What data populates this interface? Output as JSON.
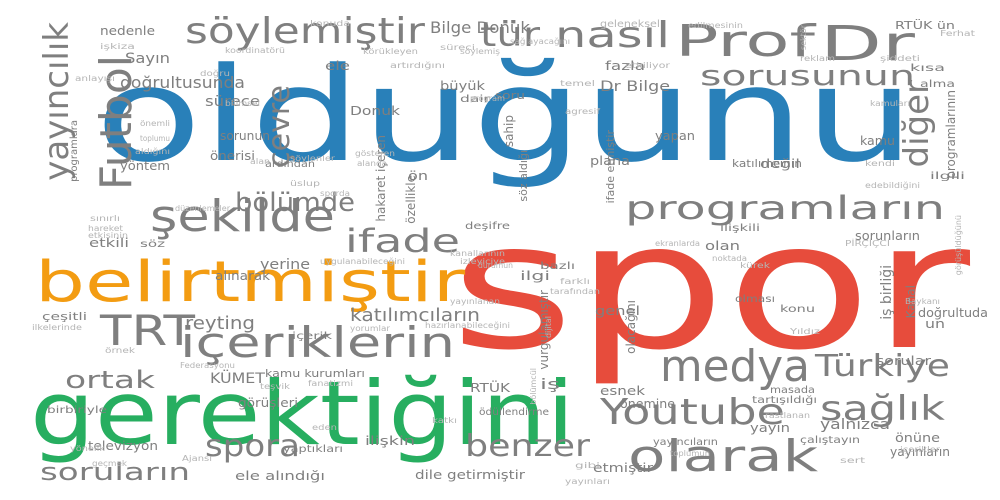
{
  "colors": {
    "red": "#e74c3c",
    "blue": "#2980b9",
    "green": "#27ae60",
    "orange": "#f39c12",
    "gray": "#7f7f7f",
    "light_gray": "#b5b5b5"
  },
  "words": [
    {
      "id": "spor",
      "text": "spor",
      "color": "red"
    },
    {
      "id": "oldugunu",
      "text": "olduğunu",
      "color": "blue"
    },
    {
      "id": "gerektigini",
      "text": "gerektiğini",
      "color": "green"
    },
    {
      "id": "belirtmistir",
      "text": "belirtmiştir",
      "color": "orange"
    },
    {
      "id": "prof",
      "text": "Prof",
      "color": "gray"
    },
    {
      "id": "dr",
      "text": "Dr",
      "color": "gray"
    },
    {
      "id": "soylemistir",
      "text": "söylemiştir",
      "color": "gray"
    },
    {
      "id": "nasil",
      "text": "nasıl",
      "color": "gray"
    },
    {
      "id": "tur",
      "text": "tür",
      "color": "gray"
    },
    {
      "id": "futbol",
      "text": "Futbol",
      "color": "gray"
    },
    {
      "id": "yayincilik",
      "text": "yayıncılık",
      "color": "gray"
    },
    {
      "id": "sekilde",
      "text": "şekilde",
      "color": "gray"
    },
    {
      "id": "cevre",
      "text": "çevre",
      "color": "gray"
    },
    {
      "id": "bolumde",
      "text": "bölümde",
      "color": "gray"
    },
    {
      "id": "ifade",
      "text": "ifade",
      "color": "gray"
    },
    {
      "id": "programlarin",
      "text": "programların",
      "color": "gray"
    },
    {
      "id": "sorusunun",
      "text": "sorusunun",
      "color": "gray"
    },
    {
      "id": "diger",
      "text": "diğer",
      "color": "gray"
    },
    {
      "id": "trt",
      "text": "TRT",
      "color": "gray"
    },
    {
      "id": "iceriklerin",
      "text": "içeriklerin",
      "color": "gray"
    },
    {
      "id": "medya",
      "text": "medya",
      "color": "gray"
    },
    {
      "id": "turkiye",
      "text": "Türkiye",
      "color": "gray"
    },
    {
      "id": "youtube",
      "text": "Youtube",
      "color": "gray"
    },
    {
      "id": "saglik",
      "text": "sağlık",
      "color": "gray"
    },
    {
      "id": "olarak",
      "text": "olarak",
      "color": "gray"
    },
    {
      "id": "benzer",
      "text": "benzer",
      "color": "gray"
    },
    {
      "id": "spora",
      "text": "spora",
      "color": "gray"
    },
    {
      "id": "sorularin",
      "text": "soruların",
      "color": "gray"
    },
    {
      "id": "ortak",
      "text": "ortak",
      "color": "gray"
    },
    {
      "id": "reyting",
      "text": "reyting",
      "color": "gray"
    },
    {
      "id": "katilimcilarin",
      "text": "katılımcıların",
      "color": "gray"
    },
    {
      "id": "bilge-donuk",
      "text": "Bilge Donuk",
      "color": "gray"
    },
    {
      "id": "dr-bilge",
      "text": "Dr Bilge",
      "color": "gray"
    },
    {
      "id": "dogrultusunda",
      "text": "doğrultusunda",
      "color": "gray"
    },
    {
      "id": "sayin",
      "text": "Sayın",
      "color": "gray"
    },
    {
      "id": "nedenle",
      "text": "nedenle",
      "color": "gray"
    },
    {
      "id": "donuk",
      "text": "Donuk",
      "color": "gray"
    },
    {
      "id": "buyuk",
      "text": "büyük",
      "color": "gray"
    },
    {
      "id": "fazla",
      "text": "fazla",
      "color": "gray"
    },
    {
      "id": "surece",
      "text": "sürece",
      "color": "gray"
    },
    {
      "id": "kumet",
      "text": "KÜMET",
      "color": "gray"
    },
    {
      "id": "rtuk",
      "text": "RTÜK",
      "color": "gray"
    },
    {
      "id": "rtuk-un",
      "text": "RTÜK ün",
      "color": "gray"
    },
    {
      "id": "yayin",
      "text": "yayın",
      "color": "gray"
    },
    {
      "id": "yalnizca",
      "text": "yalnızca",
      "color": "gray"
    },
    {
      "id": "sorular",
      "text": "sorular",
      "color": "gray"
    },
    {
      "id": "kanal",
      "text": "Kanal",
      "color": "gray"
    },
    {
      "id": "is-birligi",
      "text": "iş birliği",
      "color": "gray"
    },
    {
      "id": "vurgulamistir",
      "text": "vurgulamıştır",
      "color": "gray"
    },
    {
      "id": "olacagini",
      "text": "olacağını",
      "color": "gray"
    },
    {
      "id": "genel",
      "text": "genel",
      "color": "gray"
    },
    {
      "id": "ilgi",
      "text": "ilgi",
      "color": "gray"
    },
    {
      "id": "ilgili",
      "text": "ilgili",
      "color": "gray"
    },
    {
      "id": "yerine",
      "text": "yerine",
      "color": "gray"
    },
    {
      "id": "yontem",
      "text": "yöntem",
      "color": "gray"
    },
    {
      "id": "programlara",
      "text": "programlara",
      "color": "gray"
    },
    {
      "id": "ozellikle",
      "text": "özellikle",
      "color": "gray"
    },
    {
      "id": "sahip",
      "text": "sahip",
      "color": "gray"
    },
    {
      "id": "soz-aldigi",
      "text": "söz aldığı",
      "color": "gray"
    },
    {
      "id": "soru",
      "text": "soru",
      "color": "gray"
    },
    {
      "id": "kamu",
      "text": "kamu",
      "color": "gray"
    },
    {
      "id": "kamu-kurumlari",
      "text": "kamu kurumları",
      "color": "gray"
    },
    {
      "id": "ifade-etmistir",
      "text": "ifade etmiştir",
      "color": "gray"
    },
    {
      "id": "gorusleri",
      "text": "görüşleri",
      "color": "gray"
    },
    {
      "id": "iliskin",
      "text": "ilişkin",
      "color": "gray"
    },
    {
      "id": "etmistir",
      "text": "etmiştir",
      "color": "gray"
    },
    {
      "id": "esnek",
      "text": "esnek",
      "color": "gray"
    },
    {
      "id": "is",
      "text": "iş",
      "color": "gray"
    },
    {
      "id": "dogrultuda",
      "text": "doğrultuda",
      "color": "gray"
    },
    {
      "id": "un",
      "text": "un",
      "color": "gray"
    },
    {
      "id": "televizyon",
      "text": "televizyon",
      "color": "gray"
    },
    {
      "id": "yaptiklari",
      "text": "yaptıkları",
      "color": "gray"
    },
    {
      "id": "ele-alindigi",
      "text": "ele alındığı",
      "color": "gray"
    },
    {
      "id": "dile-getirmistir",
      "text": "dile getirmiştir",
      "color": "gray"
    },
    {
      "id": "onemine",
      "text": "önemine",
      "color": "gray"
    },
    {
      "id": "yayincilarin",
      "text": "yayıncıların",
      "color": "gray"
    },
    {
      "id": "yayinlarin",
      "text": "yayınların",
      "color": "gray"
    },
    {
      "id": "onune",
      "text": "önüne",
      "color": "gray"
    },
    {
      "id": "calistayin",
      "text": "çalıştayın",
      "color": "gray"
    },
    {
      "id": "sorunlarin",
      "text": "sorunların",
      "color": "gray"
    },
    {
      "id": "olan",
      "text": "olan",
      "color": "gray"
    },
    {
      "id": "katilimcinin",
      "text": "katılımcının",
      "color": "gray"
    },
    {
      "id": "iliskili",
      "text": "ilişkili",
      "color": "gray"
    },
    {
      "id": "etkili",
      "text": "etkili",
      "color": "gray"
    },
    {
      "id": "cesitli",
      "text": "çeşitli",
      "color": "gray"
    },
    {
      "id": "icerik",
      "text": "içerik",
      "color": "gray"
    },
    {
      "id": "yapan",
      "text": "yapan",
      "color": "gray"
    },
    {
      "id": "degil",
      "text": "değil",
      "color": "gray"
    },
    {
      "id": "plana",
      "text": "plana",
      "color": "gray"
    },
    {
      "id": "sorunun",
      "text": "sorunun",
      "color": "gray"
    },
    {
      "id": "onerisi",
      "text": "önerisi",
      "color": "gray"
    },
    {
      "id": "ardindan",
      "text": "ardından",
      "color": "gray"
    },
    {
      "id": "alinarak",
      "text": "alınarak",
      "color": "gray"
    },
    {
      "id": "soz",
      "text": "söz",
      "color": "gray"
    },
    {
      "id": "desifre",
      "text": "deşifre",
      "color": "gray"
    },
    {
      "id": "bazli",
      "text": "bazlı",
      "color": "gray"
    },
    {
      "id": "olmasi",
      "text": "olması",
      "color": "gray"
    },
    {
      "id": "konu",
      "text": "konu",
      "color": "gray"
    },
    {
      "id": "birbiriyle",
      "text": "birbiriyle",
      "color": "gray"
    },
    {
      "id": "masada",
      "text": "masada",
      "color": "gray"
    },
    {
      "id": "tartisildigi",
      "text": "tartışıldığı",
      "color": "gray"
    },
    {
      "id": "odullendirme",
      "text": "ödüllendirme",
      "color": "gray"
    },
    {
      "id": "hakaret-iceren",
      "text": "hakaret içeren",
      "color": "gray"
    },
    {
      "id": "programlarinin",
      "text": "programlarının",
      "color": "gray"
    },
    {
      "id": "ele",
      "text": "ele",
      "color": "gray"
    },
    {
      "id": "dair",
      "text": "dair",
      "color": "gray"
    },
    {
      "id": "on",
      "text": "ön",
      "color": "gray"
    },
    {
      "id": "kisa",
      "text": "kısa",
      "color": "gray"
    },
    {
      "id": "alma",
      "text": "alma",
      "color": "gray"
    },
    {
      "id": "geleneksel",
      "text": "geleneksel",
      "color": "light_gray"
    },
    {
      "id": "temel",
      "text": "temel",
      "color": "light_gray"
    },
    {
      "id": "sektor",
      "text": "sektör",
      "color": "light_gray"
    },
    {
      "id": "konuda",
      "text": "konuda",
      "color": "light_gray"
    },
    {
      "id": "edilmesinin",
      "text": "edilmesinin",
      "color": "light_gray"
    },
    {
      "id": "reklam",
      "text": "reklam",
      "color": "light_gray"
    },
    {
      "id": "siddeti",
      "text": "şiddeti",
      "color": "light_gray"
    },
    {
      "id": "ferhat",
      "text": "Ferhat",
      "color": "light_gray"
    },
    {
      "id": "sagliyacagini",
      "text": "sağlayacağını",
      "color": "light_gray"
    },
    {
      "id": "korukleyen",
      "text": "körükleyen",
      "color": "light_gray"
    },
    {
      "id": "artirdigini",
      "text": "artırdığını",
      "color": "light_gray"
    },
    {
      "id": "surec",
      "text": "süreci",
      "color": "light_gray"
    },
    {
      "id": "soylemis",
      "text": "söylemiş",
      "color": "light_gray"
    },
    {
      "id": "etkiliyor",
      "text": "etkiliyor",
      "color": "light_gray"
    },
    {
      "id": "iskiza",
      "text": "işkiza",
      "color": "light_gray"
    },
    {
      "id": "koordinatoru",
      "text": "koordinatörü",
      "color": "light_gray"
    },
    {
      "id": "dogru",
      "text": "doğru",
      "color": "light_gray"
    },
    {
      "id": "anlayisi",
      "text": "anlayışı",
      "color": "light_gray"
    },
    {
      "id": "program",
      "text": "program",
      "color": "light_gray"
    },
    {
      "id": "agresif",
      "text": "agresif",
      "color": "light_gray"
    },
    {
      "id": "onemli",
      "text": "önemli",
      "color": "light_gray"
    },
    {
      "id": "toplumu",
      "text": "toplumu",
      "color": "light_gray"
    },
    {
      "id": "aldigini",
      "text": "aldığını",
      "color": "light_gray"
    },
    {
      "id": "bilimsel",
      "text": "bilimsel",
      "color": "light_gray"
    },
    {
      "id": "alan",
      "text": "alan",
      "color": "light_gray"
    },
    {
      "id": "kamulari",
      "text": "kamuları",
      "color": "light_gray"
    },
    {
      "id": "kendi",
      "text": "kendi",
      "color": "light_gray"
    },
    {
      "id": "edebildigini",
      "text": "edebildiğini",
      "color": "light_gray"
    },
    {
      "id": "gosteren",
      "text": "gösteren",
      "color": "light_gray"
    },
    {
      "id": "alanda",
      "text": "alanda",
      "color": "light_gray"
    },
    {
      "id": "soylenler",
      "text": "söylenler",
      "color": "light_gray"
    },
    {
      "id": "uslup",
      "text": "üslup",
      "color": "light_gray"
    },
    {
      "id": "sporda",
      "text": "sporda",
      "color": "light_gray"
    },
    {
      "id": "duzenlemeler",
      "text": "düzenlemeler",
      "color": "light_gray"
    },
    {
      "id": "sinirli",
      "text": "sınırlı",
      "color": "light_gray"
    },
    {
      "id": "hareket",
      "text": "hareket",
      "color": "light_gray"
    },
    {
      "id": "etkisinin",
      "text": "etkisinin",
      "color": "light_gray"
    },
    {
      "id": "ekranlarda",
      "text": "ekranlarda",
      "color": "light_gray"
    },
    {
      "id": "kanallarinin",
      "text": "kanallarının",
      "color": "light_gray"
    },
    {
      "id": "noktada",
      "text": "noktada",
      "color": "light_gray"
    },
    {
      "id": "pircikci",
      "text": "PİRÇİÇCİ",
      "color": "light_gray"
    },
    {
      "id": "uygulanabilecegini",
      "text": "uygulanabileceğini",
      "color": "light_gray"
    },
    {
      "id": "izleyiciye",
      "text": "izleyiciye",
      "color": "light_gray"
    },
    {
      "id": "durumun",
      "text": "durumun",
      "color": "light_gray"
    },
    {
      "id": "farkli",
      "text": "farklı",
      "color": "light_gray"
    },
    {
      "id": "tarafindan",
      "text": "tarafından",
      "color": "light_gray"
    },
    {
      "id": "kurek",
      "text": "kürek",
      "color": "light_gray"
    },
    {
      "id": "baykani",
      "text": "Baykanı",
      "color": "light_gray"
    },
    {
      "id": "yildiz",
      "text": "Yıldız",
      "color": "light_gray"
    },
    {
      "id": "yayinlanan",
      "text": "yayınlanan",
      "color": "light_gray"
    },
    {
      "id": "hazirlanabilecegini",
      "text": "hazırlanabileceğini",
      "color": "light_gray"
    },
    {
      "id": "dijital",
      "text": "dijital",
      "color": "light_gray"
    },
    {
      "id": "ornek",
      "text": "örnek",
      "color": "light_gray"
    },
    {
      "id": "ilkelerinde",
      "text": "ilkelerinde",
      "color": "light_gray"
    },
    {
      "id": "federasyonu",
      "text": "Federasyonu",
      "color": "light_gray"
    },
    {
      "id": "tesvik",
      "text": "teşvik",
      "color": "light_gray"
    },
    {
      "id": "fanatizmi",
      "text": "fanatizmi",
      "color": "light_gray"
    },
    {
      "id": "yorumlar",
      "text": "yorumlar",
      "color": "light_gray"
    },
    {
      "id": "bolumcul",
      "text": "bölümcül",
      "color": "light_gray"
    },
    {
      "id": "rastlanan",
      "text": "rastlanan",
      "color": "light_gray"
    },
    {
      "id": "toplumun",
      "text": "toplumun",
      "color": "light_gray"
    },
    {
      "id": "yonelik",
      "text": "yönelik",
      "color": "light_gray"
    },
    {
      "id": "gecmek",
      "text": "geçmek",
      "color": "light_gray"
    },
    {
      "id": "ajansi",
      "text": "Ajansı",
      "color": "light_gray"
    },
    {
      "id": "eden",
      "text": "eden",
      "color": "light_gray"
    },
    {
      "id": "katki",
      "text": "katkı",
      "color": "light_gray"
    },
    {
      "id": "sert",
      "text": "sert",
      "color": "light_gray"
    },
    {
      "id": "icerikler",
      "text": "içerikler",
      "color": "light_gray"
    },
    {
      "id": "gorusuldugunu",
      "text": "görüşüldüğünü",
      "color": "light_gray"
    },
    {
      "id": "gibi",
      "text": "gibi",
      "color": "light_gray"
    },
    {
      "id": "yayinlari",
      "text": "yayınları",
      "color": "light_gray"
    }
  ]
}
